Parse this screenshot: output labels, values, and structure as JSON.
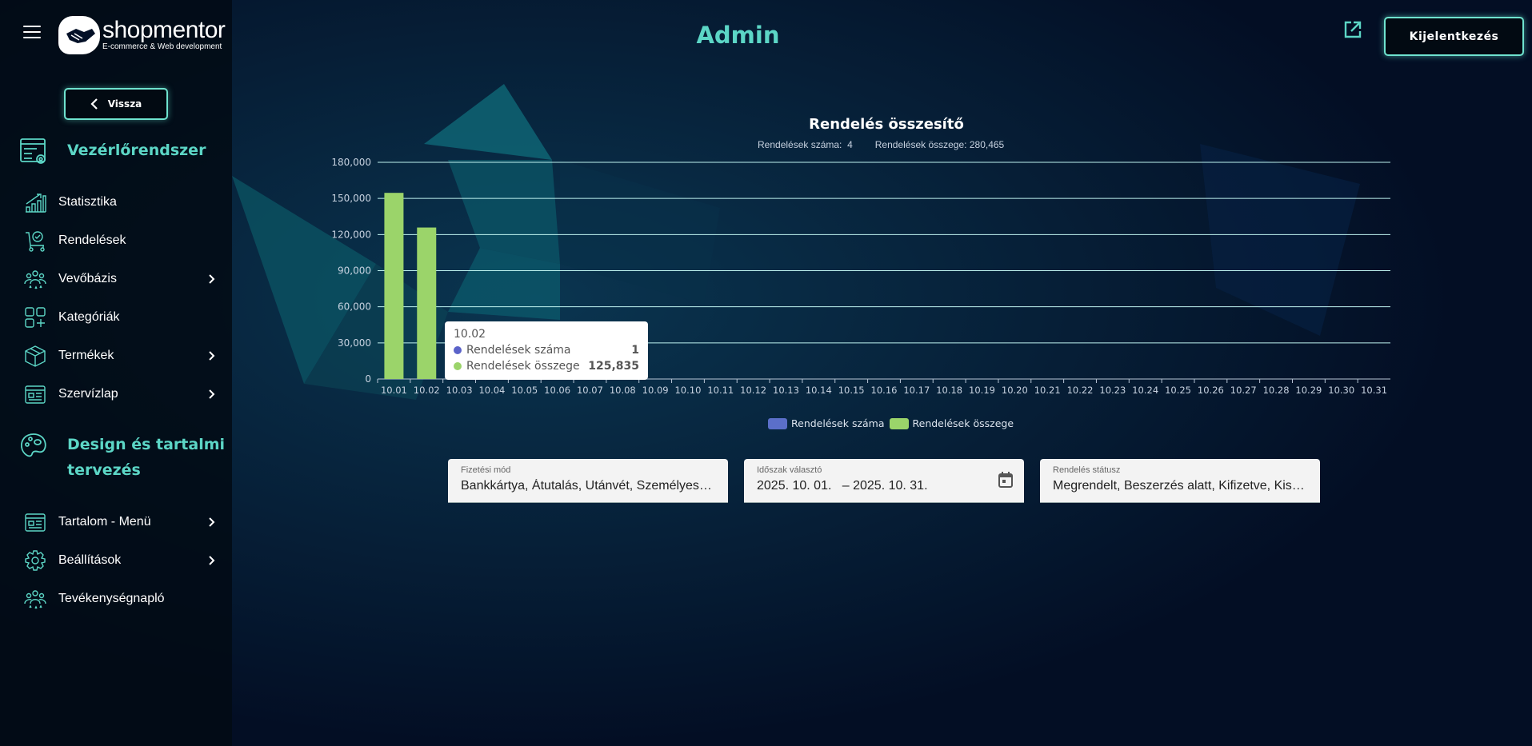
{
  "header": {
    "logo_name": "shopmentor",
    "logo_sub": "E-commerce & Web development",
    "title": "Admin",
    "logout_label": "Kijelentkezés"
  },
  "sidebar": {
    "back_label": "Vissza",
    "section1": "Vezérlőrendszer",
    "items1": [
      {
        "label": "Statisztika",
        "icon": "chart-growth-icon",
        "chevron": false
      },
      {
        "label": "Rendelések",
        "icon": "cart-check-icon",
        "chevron": false
      },
      {
        "label": "Vevőbázis",
        "icon": "customers-icon",
        "chevron": true
      },
      {
        "label": "Kategóriák",
        "icon": "categories-icon",
        "chevron": false
      },
      {
        "label": "Termékek",
        "icon": "box-icon",
        "chevron": true
      },
      {
        "label": "Szervízlap",
        "icon": "service-sheet-icon",
        "chevron": true
      }
    ],
    "section2_line1": "Design és tartalmi",
    "section2_line2": "tervezés",
    "items2": [
      {
        "label": "Tartalom - Menü",
        "icon": "content-menu-icon",
        "chevron": true
      },
      {
        "label": "Beállítások",
        "icon": "gear-icon",
        "chevron": true
      },
      {
        "label": "Tevékenységnapló",
        "icon": "activity-log-icon",
        "chevron": false
      }
    ]
  },
  "summary": {
    "count_label": "Rendelések száma:",
    "count_value": "4",
    "total_label": "Rendelések összege:",
    "total_value": "280,465"
  },
  "tooltip": {
    "date": "10.02",
    "rows": [
      {
        "label": "Rendelések száma",
        "value": "1",
        "color": "#5b63c9"
      },
      {
        "label": "Rendelések összege",
        "value": "125,835",
        "color": "#9bd46a"
      }
    ]
  },
  "filters": [
    {
      "label": "Fizetési mód",
      "value": "Bankkártya, Átutalás, Utánvét, Személyes átvétel"
    },
    {
      "label": "Időszak választó",
      "value": "2025. 10. 01.   – 2025. 10. 31."
    },
    {
      "label": "Rendelés státusz",
      "value": "Megrendelt, Beszerzés alatt, Kifizetve, Kiszállítva"
    }
  ],
  "chart_data": {
    "type": "bar",
    "title": "Rendelés összesítő",
    "categories": [
      "10.01",
      "10.02",
      "10.03",
      "10.04",
      "10.05",
      "10.06",
      "10.07",
      "10.08",
      "10.09",
      "10.10",
      "10.11",
      "10.12",
      "10.13",
      "10.14",
      "10.15",
      "10.16",
      "10.17",
      "10.18",
      "10.19",
      "10.20",
      "10.21",
      "10.22",
      "10.23",
      "10.24",
      "10.25",
      "10.26",
      "10.27",
      "10.28",
      "10.29",
      "10.30",
      "10.31"
    ],
    "series": [
      {
        "name": "Rendelések száma",
        "color": "#5b6fc9",
        "values": [
          3,
          1,
          0,
          0,
          0,
          0,
          0,
          0,
          0,
          0,
          0,
          0,
          0,
          0,
          0,
          0,
          0,
          0,
          0,
          0,
          0,
          0,
          0,
          0,
          0,
          0,
          0,
          0,
          0,
          0,
          0
        ]
      },
      {
        "name": "Rendelések összege",
        "color": "#9bd46a",
        "values": [
          154630,
          125835,
          0,
          0,
          0,
          0,
          0,
          0,
          0,
          0,
          0,
          0,
          0,
          0,
          0,
          0,
          0,
          0,
          0,
          0,
          0,
          0,
          0,
          0,
          0,
          0,
          0,
          0,
          0,
          0,
          0
        ]
      }
    ],
    "yticks": [
      "0",
      "30,000",
      "60,000",
      "90,000",
      "120,000",
      "150,000",
      "180,000"
    ],
    "ylim": [
      0,
      180000
    ],
    "grid": true,
    "legend": "bottom"
  }
}
